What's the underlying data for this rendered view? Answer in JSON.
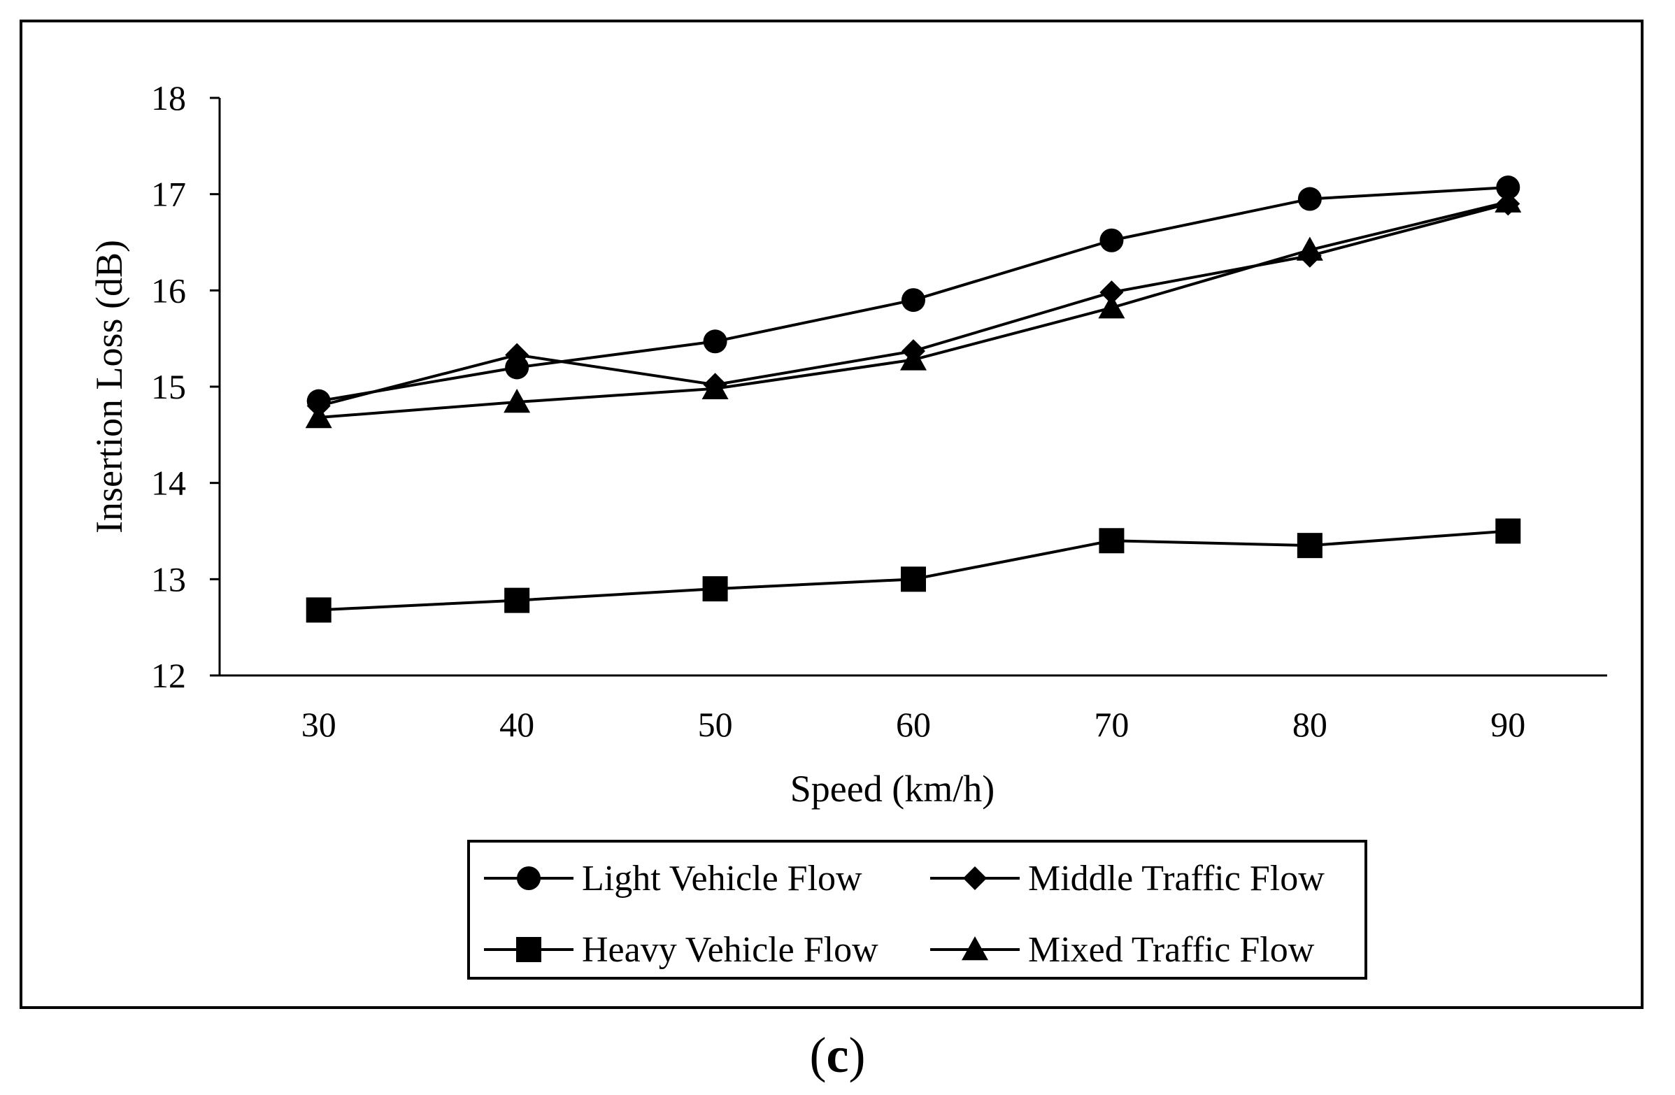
{
  "chart_data": {
    "type": "line",
    "title": "",
    "xlabel": "Speed (km/h)",
    "ylabel": "Insertion Loss (dB)",
    "x": [
      30,
      40,
      50,
      60,
      70,
      80,
      90
    ],
    "xlim": [
      25,
      95
    ],
    "ylim": [
      12,
      18
    ],
    "yticks": [
      12,
      13,
      14,
      15,
      16,
      17,
      18
    ],
    "grid": false,
    "legend_position": "bottom",
    "series": [
      {
        "name": "Light Vehicle Flow",
        "marker": "circle",
        "values": [
          14.85,
          15.2,
          15.47,
          15.9,
          16.52,
          16.95,
          17.07
        ]
      },
      {
        "name": "Middle Traffic Flow",
        "marker": "diamond",
        "values": [
          14.8,
          15.33,
          15.02,
          15.37,
          15.98,
          16.36,
          16.9
        ]
      },
      {
        "name": "Heavy Vehicle Flow",
        "marker": "square",
        "values": [
          12.68,
          12.78,
          12.9,
          13.0,
          13.4,
          13.35,
          13.5
        ]
      },
      {
        "name": "Mixed Traffic Flow",
        "marker": "triangle",
        "values": [
          14.68,
          14.84,
          14.98,
          15.28,
          15.82,
          16.42,
          16.92
        ]
      }
    ]
  },
  "figure": {
    "panel_open": "(",
    "panel_letter": "c",
    "panel_close": ")"
  }
}
